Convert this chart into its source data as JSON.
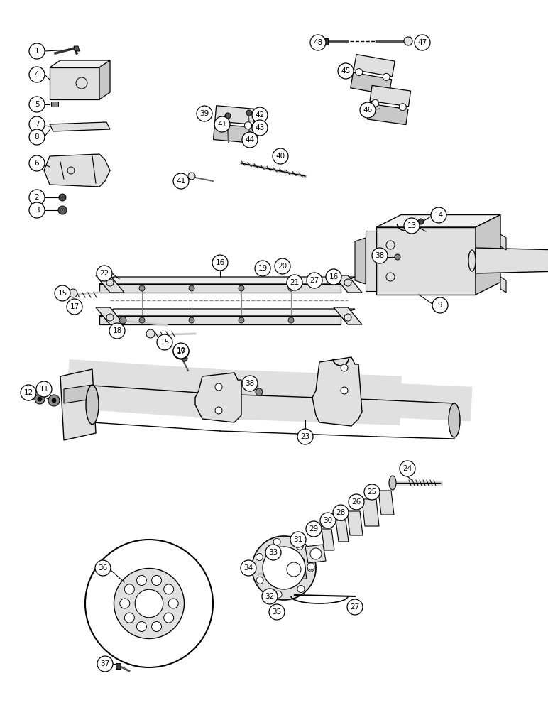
{
  "bg_color": "#ffffff",
  "line_color": "#000000",
  "fig_width": 7.72,
  "fig_height": 10.0,
  "dpi": 100
}
